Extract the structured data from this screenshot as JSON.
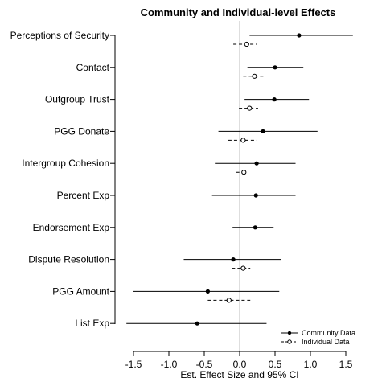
{
  "chart_data": {
    "type": "coefficient-plot",
    "title": "Community and Individual-level Effects",
    "xlabel": "Est. Effect Size and 95% CI",
    "ylabel": "",
    "xlim": [
      -1.5,
      1.5
    ],
    "x_ticks": [
      -1.5,
      -1.0,
      -0.5,
      0.0,
      0.5,
      1.0,
      1.5
    ],
    "x_tick_labels": [
      "-1.5",
      "-1.0",
      "-0.5",
      "0.0",
      "0.5",
      "1.0",
      "1.5"
    ],
    "reference_line": 0,
    "grid": false,
    "legend_position": "bottom-right",
    "categories": [
      "Perceptions of Security",
      "Contact",
      "Outgroup Trust",
      "PGG Donate",
      "Intergroup Cohesion",
      "Percent Exp",
      "Endorsement Exp",
      "Dispute Resolution",
      "PGG Amount",
      "List Exp"
    ],
    "series": [
      {
        "name": "Community Data",
        "line_style": "solid",
        "marker": "filled-circle",
        "color": "#000000",
        "estimates": [
          0.84,
          0.5,
          0.49,
          0.33,
          0.24,
          0.23,
          0.22,
          -0.09,
          -0.45,
          -0.6
        ],
        "ci_low": [
          0.14,
          0.11,
          0.07,
          -0.3,
          -0.35,
          -0.39,
          -0.1,
          -0.79,
          -1.5,
          -1.6
        ],
        "ci_high": [
          1.6,
          0.9,
          0.98,
          1.1,
          0.79,
          0.79,
          0.48,
          0.58,
          0.56,
          0.38
        ]
      },
      {
        "name": "Individual Data",
        "line_style": "dashed",
        "marker": "open-circle",
        "color": "#000000",
        "estimates": [
          0.1,
          0.21,
          0.14,
          0.05,
          0.06,
          null,
          null,
          0.05,
          -0.15,
          null
        ],
        "ci_low": [
          -0.09,
          0.05,
          -0.01,
          -0.16,
          -0.05,
          null,
          null,
          -0.11,
          -0.45,
          null
        ],
        "ci_high": [
          0.25,
          0.36,
          0.26,
          0.25,
          0.09,
          null,
          null,
          0.15,
          0.15,
          null
        ]
      }
    ]
  }
}
